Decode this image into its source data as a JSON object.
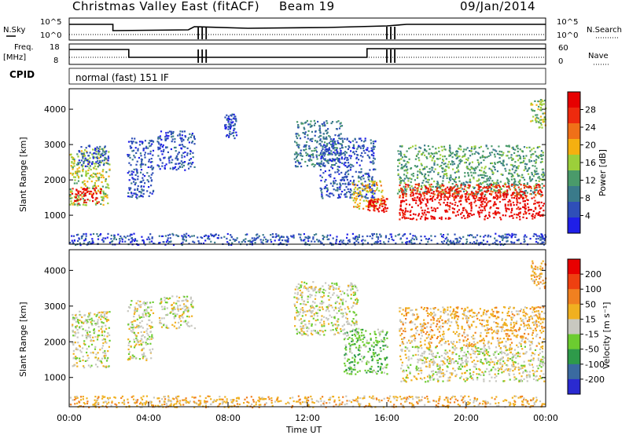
{
  "header": {
    "station": "Christmas Valley East (fitACF)",
    "beam": "Beam 19",
    "date": "09/Jan/2014"
  },
  "top_panels": {
    "nsky_label": "N.Sky",
    "nsky_ticks": [
      "10^5",
      "10^0"
    ],
    "nsearch_label": "N.Search",
    "nsearch_ticks": [
      "10^5",
      "10^0"
    ],
    "freq_label": "Freq.",
    "freq_unit": "[MHz]",
    "freq_ticks": [
      "18",
      "8"
    ],
    "nave_label": "Nave",
    "nave_ticks": [
      "60",
      "0"
    ],
    "cpid_label": "CPID",
    "cpid_value": "normal (fast) 151 IF"
  },
  "colors": {
    "power_scale": [
      "#1f1fe8",
      "#2f4fb8",
      "#3a7a8a",
      "#4a9a6a",
      "#9ccf3a",
      "#f5b010",
      "#f07018",
      "#ee2a0e",
      "#e60000"
    ],
    "velocity_scale": [
      "#2a2ad0",
      "#3a6aa0",
      "#2e9a4a",
      "#6ccc30",
      "#c8c8c0",
      "#f0b020",
      "#f08020",
      "#ee4010",
      "#e80000"
    ]
  },
  "chart_data": [
    {
      "type": "heatmap",
      "name": "power",
      "ylabel": "Slant Range [km]",
      "yticks": [
        "1000",
        "2000",
        "3000",
        "4000"
      ],
      "colorbar_label": "Power [dB]",
      "colorbar_ticks": [
        "28",
        "24",
        "20",
        "16",
        "12",
        "8",
        "4"
      ],
      "x_range": [
        0,
        24
      ],
      "y_range": [
        180,
        4580
      ],
      "regions": [
        {
          "t0": 0.0,
          "t1": 2.0,
          "r0": 1300,
          "r1": 2900,
          "level": 4
        },
        {
          "t0": 0.1,
          "t1": 1.6,
          "r0": 1350,
          "r1": 1800,
          "level": 8
        },
        {
          "t0": 0.4,
          "t1": 2.0,
          "r0": 2400,
          "r1": 3000,
          "level": 1
        },
        {
          "t0": 2.9,
          "t1": 4.2,
          "r0": 1500,
          "r1": 3200,
          "level": 1
        },
        {
          "t0": 4.4,
          "t1": 6.3,
          "r0": 2300,
          "r1": 3400,
          "level": 1
        },
        {
          "t0": 7.8,
          "t1": 8.4,
          "r0": 3200,
          "r1": 3900,
          "level": 1
        },
        {
          "t0": 11.3,
          "t1": 13.8,
          "r0": 2400,
          "r1": 3700,
          "level": 2
        },
        {
          "t0": 12.6,
          "t1": 15.4,
          "r0": 1500,
          "r1": 3200,
          "level": 1
        },
        {
          "t0": 14.2,
          "t1": 15.9,
          "r0": 1200,
          "r1": 2000,
          "level": 5
        },
        {
          "t0": 15.0,
          "t1": 16.0,
          "r0": 1100,
          "r1": 1500,
          "level": 8
        },
        {
          "t0": 16.5,
          "t1": 23.9,
          "r0": 1600,
          "r1": 3000,
          "level": 3
        },
        {
          "t0": 16.6,
          "t1": 23.9,
          "r0": 900,
          "r1": 1700,
          "level": 8
        },
        {
          "t0": 16.6,
          "t1": 23.9,
          "r0": 1500,
          "r1": 1900,
          "level": 7
        },
        {
          "t0": 23.2,
          "t1": 24.0,
          "r0": 3500,
          "r1": 4300,
          "level": 4
        },
        {
          "t0": 0.0,
          "t1": 24.0,
          "r0": 180,
          "r1": 500,
          "level": 1
        }
      ]
    },
    {
      "type": "heatmap",
      "name": "velocity",
      "ylabel": "Slant Range [km]",
      "yticks": [
        "1000",
        "2000",
        "3000",
        "4000"
      ],
      "colorbar_label": "Velocity [m s⁻¹]",
      "colorbar_ticks": [
        "200",
        "100",
        "50",
        "15",
        "-15",
        "-50",
        "-100",
        "-200"
      ],
      "xlabel": "Time UT",
      "xticks": [
        "00:00",
        "04:00",
        "08:00",
        "12:00",
        "16:00",
        "20:00",
        "00:00"
      ],
      "x_range": [
        0,
        24
      ],
      "y_range": [
        180,
        4580
      ],
      "regions": [
        {
          "t0": 0.1,
          "t1": 2.0,
          "r0": 1300,
          "r1": 2900,
          "level": 4
        },
        {
          "t0": 2.9,
          "t1": 4.2,
          "r0": 1500,
          "r1": 3200,
          "level": 4
        },
        {
          "t0": 4.5,
          "t1": 6.3,
          "r0": 2400,
          "r1": 3300,
          "level": 4
        },
        {
          "t0": 11.3,
          "t1": 14.5,
          "r0": 2200,
          "r1": 3700,
          "level": 4
        },
        {
          "t0": 13.8,
          "t1": 16.0,
          "r0": 1100,
          "r1": 2400,
          "level": 3
        },
        {
          "t0": 16.6,
          "t1": 23.9,
          "r0": 900,
          "r1": 1900,
          "level": 4
        },
        {
          "t0": 16.6,
          "t1": 23.9,
          "r0": 1900,
          "r1": 3000,
          "level": 5
        },
        {
          "t0": 23.2,
          "t1": 24.0,
          "r0": 3500,
          "r1": 4300,
          "level": 5
        },
        {
          "t0": 0.0,
          "t1": 24.0,
          "r0": 180,
          "r1": 500,
          "level": 5
        }
      ]
    }
  ]
}
